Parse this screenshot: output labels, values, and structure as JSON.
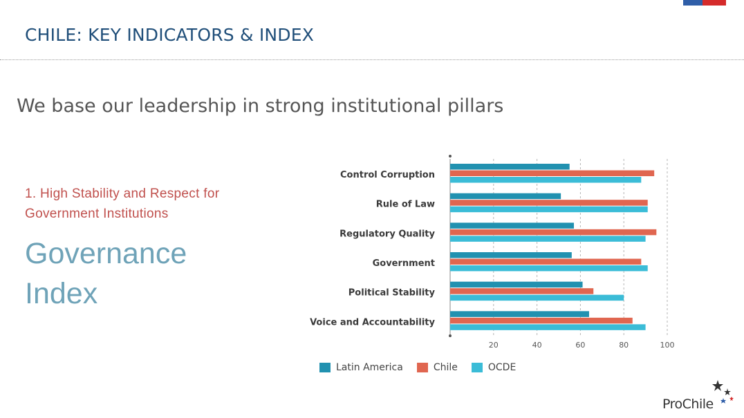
{
  "slide": {
    "title": "CHILE: KEY INDICATORS & INDEX",
    "subtitle": "We base our  leadership in strong  institutional pillars",
    "point": "1.  High Stability and Respect  for Government Institutions",
    "big_label": "Governance Index",
    "logo_text": "ProChile"
  },
  "colors": {
    "latin_america": "#2191b0",
    "chile": "#e06650",
    "ocde": "#3bbcd7",
    "title": "#1f4e79"
  },
  "chart_data": {
    "type": "bar",
    "orientation": "horizontal",
    "categories": [
      "Control Corruption",
      "Rule of Law",
      "Regulatory Quality",
      "Government",
      "Political Stability",
      "Voice and Accountability"
    ],
    "series": [
      {
        "name": "Latin America",
        "values": [
          55,
          51,
          57,
          56,
          61,
          64
        ]
      },
      {
        "name": "Chile",
        "values": [
          94,
          91,
          95,
          88,
          66,
          84
        ]
      },
      {
        "name": "OCDE",
        "values": [
          88,
          91,
          90,
          91,
          80,
          90
        ]
      }
    ],
    "xlim": [
      0,
      100
    ],
    "xticks": [
      20,
      40,
      60,
      80,
      100
    ],
    "grid": "vertical-dashed",
    "legend": "bottom"
  }
}
